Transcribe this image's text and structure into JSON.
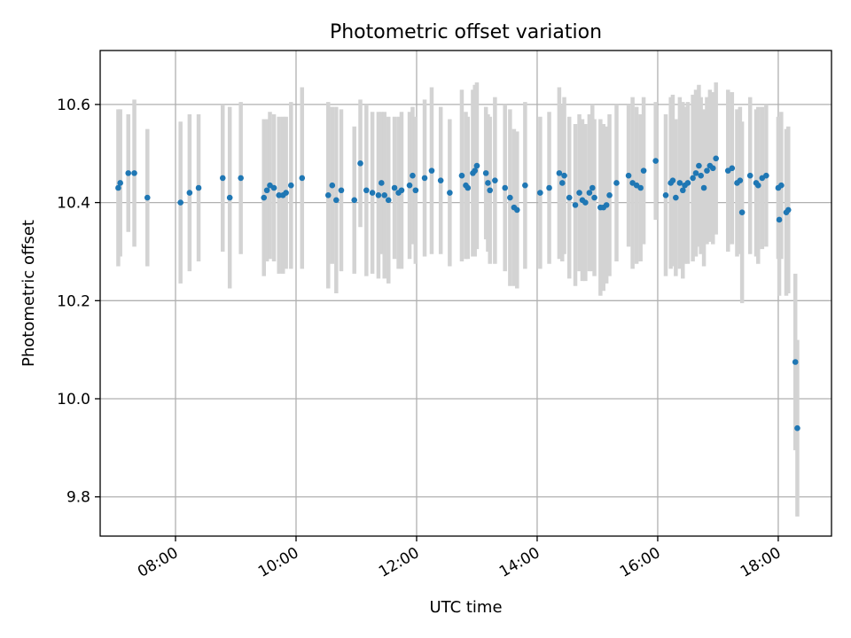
{
  "chart_data": {
    "type": "scatter",
    "title": "Photometric offset variation",
    "xlabel": "UTC time",
    "ylabel": "Photometric offset",
    "xlim": [
      "06:45",
      "18:53"
    ],
    "ylim": [
      9.72,
      10.71
    ],
    "xticks": [
      "08:00",
      "10:00",
      "12:00",
      "14:00",
      "16:00",
      "18:00"
    ],
    "yticks": [
      9.8,
      10.0,
      10.2,
      10.4,
      10.6
    ],
    "grid": true,
    "marker_color": "#1f77b4",
    "errorbar_color": "#d3d3d3",
    "points": [
      {
        "x": "07:03",
        "y": 10.43,
        "err": 0.16
      },
      {
        "x": "07:05",
        "y": 10.44,
        "err": 0.15
      },
      {
        "x": "07:13",
        "y": 10.46,
        "err": 0.12
      },
      {
        "x": "07:19",
        "y": 10.46,
        "err": 0.15
      },
      {
        "x": "07:32",
        "y": 10.41,
        "err": 0.14
      },
      {
        "x": "08:05",
        "y": 10.4,
        "err": 0.165
      },
      {
        "x": "08:14",
        "y": 10.42,
        "err": 0.16
      },
      {
        "x": "08:23",
        "y": 10.43,
        "err": 0.15
      },
      {
        "x": "08:47",
        "y": 10.45,
        "err": 0.15
      },
      {
        "x": "08:54",
        "y": 10.41,
        "err": 0.185
      },
      {
        "x": "09:05",
        "y": 10.45,
        "err": 0.155
      },
      {
        "x": "09:28",
        "y": 10.41,
        "err": 0.16
      },
      {
        "x": "09:31",
        "y": 10.425,
        "err": 0.145
      },
      {
        "x": "09:34",
        "y": 10.435,
        "err": 0.15
      },
      {
        "x": "09:38",
        "y": 10.43,
        "err": 0.15
      },
      {
        "x": "09:43",
        "y": 10.415,
        "err": 0.16
      },
      {
        "x": "09:47",
        "y": 10.415,
        "err": 0.16
      },
      {
        "x": "09:50",
        "y": 10.42,
        "err": 0.155
      },
      {
        "x": "09:55",
        "y": 10.435,
        "err": 0.17
      },
      {
        "x": "10:06",
        "y": 10.45,
        "err": 0.185
      },
      {
        "x": "10:32",
        "y": 10.415,
        "err": 0.19
      },
      {
        "x": "10:36",
        "y": 10.435,
        "err": 0.16
      },
      {
        "x": "10:40",
        "y": 10.405,
        "err": 0.19
      },
      {
        "x": "10:45",
        "y": 10.425,
        "err": 0.165
      },
      {
        "x": "10:58",
        "y": 10.405,
        "err": 0.15
      },
      {
        "x": "11:04",
        "y": 10.48,
        "err": 0.13
      },
      {
        "x": "11:10",
        "y": 10.425,
        "err": 0.175
      },
      {
        "x": "11:16",
        "y": 10.42,
        "err": 0.165
      },
      {
        "x": "11:22",
        "y": 10.415,
        "err": 0.17
      },
      {
        "x": "11:25",
        "y": 10.44,
        "err": 0.145
      },
      {
        "x": "11:28",
        "y": 10.415,
        "err": 0.17
      },
      {
        "x": "11:32",
        "y": 10.405,
        "err": 0.17
      },
      {
        "x": "11:38",
        "y": 10.43,
        "err": 0.145
      },
      {
        "x": "11:42",
        "y": 10.42,
        "err": 0.155
      },
      {
        "x": "11:45",
        "y": 10.425,
        "err": 0.16
      },
      {
        "x": "11:53",
        "y": 10.435,
        "err": 0.15
      },
      {
        "x": "11:56",
        "y": 10.455,
        "err": 0.14
      },
      {
        "x": "11:59",
        "y": 10.425,
        "err": 0.15
      },
      {
        "x": "12:08",
        "y": 10.45,
        "err": 0.16
      },
      {
        "x": "12:15",
        "y": 10.465,
        "err": 0.17
      },
      {
        "x": "12:24",
        "y": 10.445,
        "err": 0.15
      },
      {
        "x": "12:33",
        "y": 10.42,
        "err": 0.15
      },
      {
        "x": "12:45",
        "y": 10.455,
        "err": 0.175
      },
      {
        "x": "12:49",
        "y": 10.435,
        "err": 0.15
      },
      {
        "x": "12:51",
        "y": 10.43,
        "err": 0.145
      },
      {
        "x": "12:56",
        "y": 10.46,
        "err": 0.17
      },
      {
        "x": "12:58",
        "y": 10.465,
        "err": 0.175
      },
      {
        "x": "13:00",
        "y": 10.475,
        "err": 0.17
      },
      {
        "x": "13:09",
        "y": 10.46,
        "err": 0.135
      },
      {
        "x": "13:11",
        "y": 10.44,
        "err": 0.14
      },
      {
        "x": "13:13",
        "y": 10.425,
        "err": 0.15
      },
      {
        "x": "13:18",
        "y": 10.445,
        "err": 0.17
      },
      {
        "x": "13:28",
        "y": 10.43,
        "err": 0.17
      },
      {
        "x": "13:33",
        "y": 10.41,
        "err": 0.18
      },
      {
        "x": "13:37",
        "y": 10.39,
        "err": 0.16
      },
      {
        "x": "13:40",
        "y": 10.385,
        "err": 0.16
      },
      {
        "x": "13:48",
        "y": 10.435,
        "err": 0.17
      },
      {
        "x": "14:03",
        "y": 10.42,
        "err": 0.155
      },
      {
        "x": "14:12",
        "y": 10.43,
        "err": 0.155
      },
      {
        "x": "14:22",
        "y": 10.46,
        "err": 0.175
      },
      {
        "x": "14:25",
        "y": 10.44,
        "err": 0.16
      },
      {
        "x": "14:27",
        "y": 10.455,
        "err": 0.16
      },
      {
        "x": "14:32",
        "y": 10.41,
        "err": 0.165
      },
      {
        "x": "14:38",
        "y": 10.395,
        "err": 0.165
      },
      {
        "x": "14:42",
        "y": 10.42,
        "err": 0.16
      },
      {
        "x": "14:45",
        "y": 10.405,
        "err": 0.165
      },
      {
        "x": "14:48",
        "y": 10.4,
        "err": 0.16
      },
      {
        "x": "14:52",
        "y": 10.42,
        "err": 0.16
      },
      {
        "x": "14:55",
        "y": 10.43,
        "err": 0.17
      },
      {
        "x": "14:57",
        "y": 10.41,
        "err": 0.16
      },
      {
        "x": "15:03",
        "y": 10.39,
        "err": 0.18
      },
      {
        "x": "15:06",
        "y": 10.39,
        "err": 0.17
      },
      {
        "x": "15:09",
        "y": 10.395,
        "err": 0.16
      },
      {
        "x": "15:12",
        "y": 10.415,
        "err": 0.165
      },
      {
        "x": "15:19",
        "y": 10.44,
        "err": 0.16
      },
      {
        "x": "15:31",
        "y": 10.455,
        "err": 0.145
      },
      {
        "x": "15:35",
        "y": 10.44,
        "err": 0.175
      },
      {
        "x": "15:39",
        "y": 10.435,
        "err": 0.16
      },
      {
        "x": "15:43",
        "y": 10.43,
        "err": 0.15
      },
      {
        "x": "15:46",
        "y": 10.465,
        "err": 0.15
      },
      {
        "x": "15:58",
        "y": 10.485,
        "err": 0.12
      },
      {
        "x": "16:08",
        "y": 10.415,
        "err": 0.165
      },
      {
        "x": "16:13",
        "y": 10.44,
        "err": 0.175
      },
      {
        "x": "16:15",
        "y": 10.445,
        "err": 0.175
      },
      {
        "x": "16:18",
        "y": 10.41,
        "err": 0.16
      },
      {
        "x": "16:22",
        "y": 10.44,
        "err": 0.175
      },
      {
        "x": "16:25",
        "y": 10.425,
        "err": 0.18
      },
      {
        "x": "16:27",
        "y": 10.435,
        "err": 0.16
      },
      {
        "x": "16:30",
        "y": 10.44,
        "err": 0.165
      },
      {
        "x": "16:35",
        "y": 10.45,
        "err": 0.17
      },
      {
        "x": "16:38",
        "y": 10.46,
        "err": 0.17
      },
      {
        "x": "16:41",
        "y": 10.475,
        "err": 0.165
      },
      {
        "x": "16:43",
        "y": 10.455,
        "err": 0.16
      },
      {
        "x": "16:46",
        "y": 10.43,
        "err": 0.16
      },
      {
        "x": "16:49",
        "y": 10.465,
        "err": 0.15
      },
      {
        "x": "16:52",
        "y": 10.475,
        "err": 0.155
      },
      {
        "x": "16:55",
        "y": 10.47,
        "err": 0.155
      },
      {
        "x": "16:58",
        "y": 10.49,
        "err": 0.155
      },
      {
        "x": "17:10",
        "y": 10.465,
        "err": 0.165
      },
      {
        "x": "17:14",
        "y": 10.47,
        "err": 0.155
      },
      {
        "x": "17:19",
        "y": 10.44,
        "err": 0.15
      },
      {
        "x": "17:22",
        "y": 10.445,
        "err": 0.15
      },
      {
        "x": "17:24",
        "y": 10.38,
        "err": 0.185
      },
      {
        "x": "17:32",
        "y": 10.455,
        "err": 0.16
      },
      {
        "x": "17:38",
        "y": 10.44,
        "err": 0.15
      },
      {
        "x": "17:40",
        "y": 10.435,
        "err": 0.16
      },
      {
        "x": "17:44",
        "y": 10.45,
        "err": 0.145
      },
      {
        "x": "17:48",
        "y": 10.455,
        "err": 0.145
      },
      {
        "x": "18:00",
        "y": 10.43,
        "err": 0.145
      },
      {
        "x": "18:01",
        "y": 10.365,
        "err": 0.155
      },
      {
        "x": "18:03",
        "y": 10.435,
        "err": 0.15
      },
      {
        "x": "18:08",
        "y": 10.38,
        "err": 0.17
      },
      {
        "x": "18:10",
        "y": 10.385,
        "err": 0.17
      },
      {
        "x": "18:17",
        "y": 10.075,
        "err": 0.18
      },
      {
        "x": "18:19",
        "y": 9.94,
        "err": 0.18
      }
    ]
  }
}
